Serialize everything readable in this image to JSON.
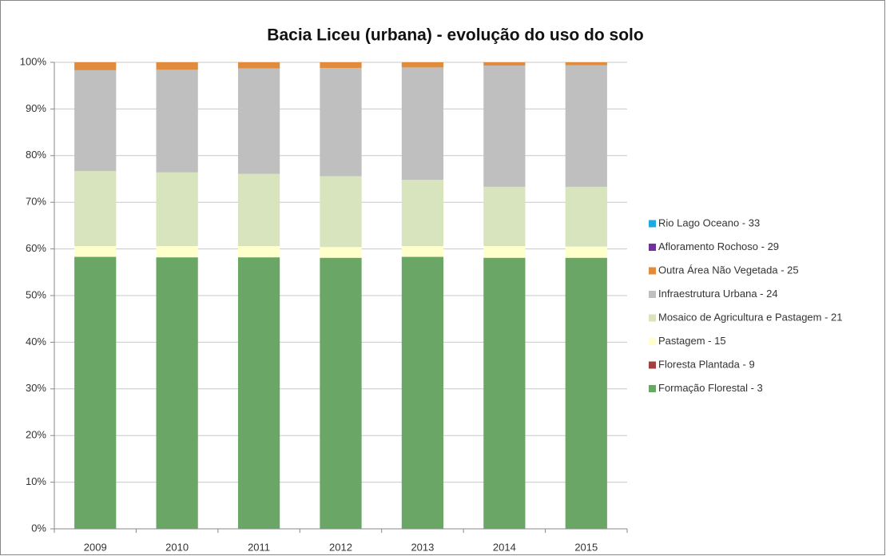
{
  "chart_data": {
    "type": "stacked_bar",
    "title": "Bacia Liceu (urbana) - evolução do uso do solo",
    "categories": [
      "2009",
      "2010",
      "2011",
      "2012",
      "2013",
      "2014",
      "2015"
    ],
    "series": [
      {
        "name": "Formação Florestal -  3",
        "color": "#6aa766",
        "values": [
          58.3,
          58.2,
          58.2,
          58.1,
          58.3,
          58.1,
          58.1
        ]
      },
      {
        "name": "Floresta Plantada - 9",
        "color": "#a04040",
        "values": [
          0,
          0,
          0,
          0,
          0,
          0,
          0
        ]
      },
      {
        "name": "Pastagem - 15",
        "color": "#ffffcc",
        "values": [
          2.3,
          2.4,
          2.4,
          2.3,
          2.3,
          2.5,
          2.4
        ]
      },
      {
        "name": "Mosaico de Agricultura e Pastagem - 21",
        "color": "#d7e4bd",
        "values": [
          16.1,
          15.8,
          15.5,
          15.2,
          14.2,
          12.7,
          12.8
        ]
      },
      {
        "name": "Infraestrutura Urbana - 24",
        "color": "#bfbfbf",
        "values": [
          21.6,
          22.0,
          22.6,
          23.2,
          24.1,
          26.0,
          26.1
        ]
      },
      {
        "name": "Outra Área Não Vegetada - 25",
        "color": "#e08c3c",
        "values": [
          1.7,
          1.6,
          1.3,
          1.2,
          1.1,
          0.7,
          0.6
        ]
      },
      {
        "name": "Afloramento Rochoso - 29",
        "color": "#7030a0",
        "values": [
          0,
          0,
          0,
          0,
          0,
          0,
          0
        ]
      },
      {
        "name": "Rio Lago Oceano - 33",
        "color": "#1fa9e0",
        "values": [
          0,
          0,
          0,
          0,
          0,
          0,
          0
        ]
      }
    ],
    "ylim": [
      0,
      100
    ],
    "yticks": [
      {
        "value": 0,
        "label": "0%"
      },
      {
        "value": 10,
        "label": "10%"
      },
      {
        "value": 20,
        "label": "20%"
      },
      {
        "value": 30,
        "label": "30%"
      },
      {
        "value": 40,
        "label": "40%"
      },
      {
        "value": 50,
        "label": "50%"
      },
      {
        "value": 60,
        "label": "60%"
      },
      {
        "value": 70,
        "label": "70%"
      },
      {
        "value": 80,
        "label": "80%"
      },
      {
        "value": 90,
        "label": "90%"
      },
      {
        "value": 100,
        "label": "100%"
      }
    ],
    "grid": true,
    "legend": "right"
  }
}
